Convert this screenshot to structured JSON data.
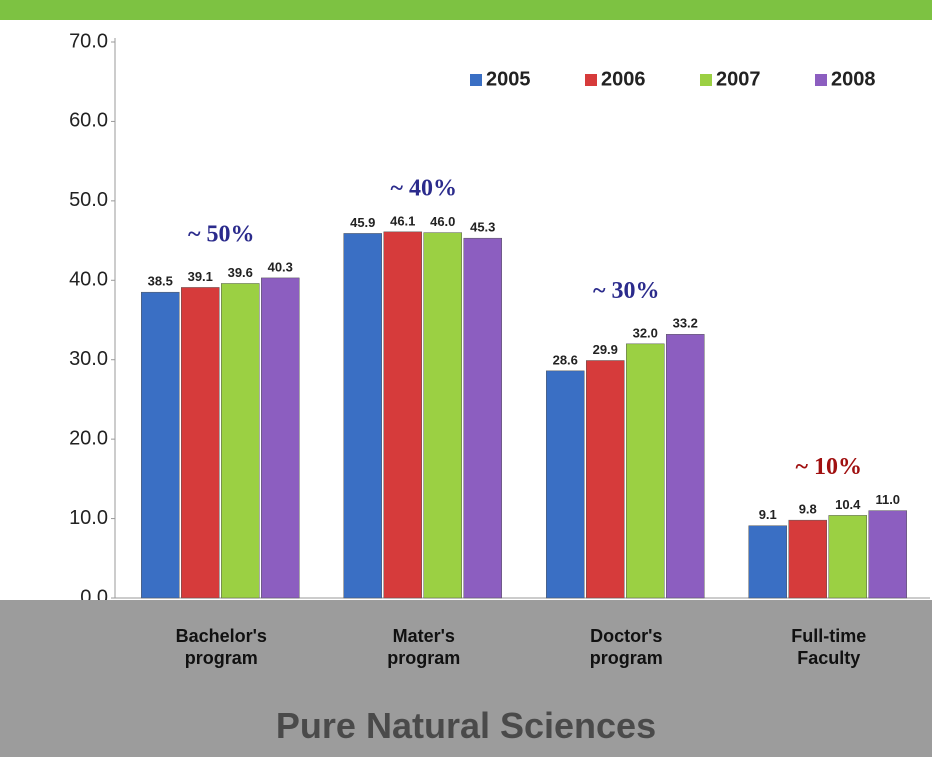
{
  "chart_data": {
    "type": "bar",
    "title": "Pure Natural Sciences",
    "categories": [
      "Bachelor's program",
      "Mater's program",
      "Doctor's program",
      "Full-time Faculty"
    ],
    "series": [
      {
        "name": "2005",
        "color": "#3a6fc4",
        "values": [
          38.5,
          45.9,
          28.6,
          9.1
        ],
        "value_labels": [
          "38.5",
          "45.9",
          "28.6",
          "9.1"
        ]
      },
      {
        "name": "2006",
        "color": "#d63b3b",
        "values": [
          39.1,
          46.1,
          29.9,
          9.8
        ],
        "value_labels": [
          "39.1",
          "46.1",
          "29.9",
          "9.8"
        ]
      },
      {
        "name": "2007",
        "color": "#9bd043",
        "values": [
          39.6,
          46.0,
          32.0,
          10.4
        ],
        "value_labels": [
          "39.6",
          "46.0",
          "32.0",
          "10.4"
        ]
      },
      {
        "name": "2008",
        "color": "#8c5ec0",
        "values": [
          40.3,
          45.3,
          33.2,
          11.0
        ],
        "value_labels": [
          "40.3",
          "45.3",
          "33.2",
          "11.0"
        ]
      }
    ],
    "annotations": [
      "~ 50%",
      "~ 40%",
      "~ 30%",
      "~ 10%"
    ],
    "ylim": [
      0,
      70
    ],
    "yticks": [
      {
        "value": 0,
        "label": "0.0"
      },
      {
        "value": 10,
        "label": "10.0"
      },
      {
        "value": 20,
        "label": "20.0"
      },
      {
        "value": 30,
        "label": "30.0"
      },
      {
        "value": 40,
        "label": "40.0"
      },
      {
        "value": 50,
        "label": "50.0"
      },
      {
        "value": 60,
        "label": "60.0"
      },
      {
        "value": 70,
        "label": "70.0"
      }
    ],
    "grid": false,
    "legend": "top-right"
  }
}
